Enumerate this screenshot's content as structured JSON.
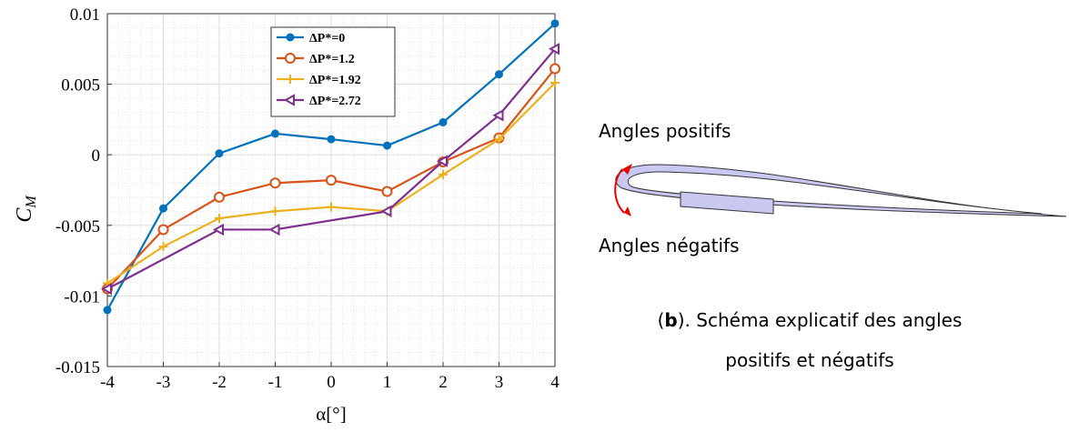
{
  "chart_data": {
    "type": "line",
    "xlabel": "α[°]",
    "ylabel": "C",
    "ylabel_sub": "M",
    "x": [
      -4,
      -3,
      -2,
      -1,
      0,
      1,
      2,
      3,
      4
    ],
    "xlim": [
      -4,
      4
    ],
    "xticks": [
      -4,
      -3,
      -2,
      -1,
      0,
      1,
      2,
      3,
      4
    ],
    "ylim": [
      -0.015,
      0.01
    ],
    "yticks": [
      -0.015,
      -0.01,
      -0.005,
      0,
      0.005,
      0.01
    ],
    "grid": true,
    "legend": "upper-left",
    "series": [
      {
        "name": "ΔP*=0",
        "color": "#0072BD",
        "marker": "filled-circle",
        "values": [
          -0.011,
          -0.0038,
          0.0001,
          0.0015,
          0.0011,
          0.00065,
          0.0023,
          0.0057,
          0.0093
        ]
      },
      {
        "name": "ΔP*=1.2",
        "color": "#D95319",
        "marker": "open-circle",
        "values": [
          -0.0095,
          -0.0053,
          -0.003,
          -0.002,
          -0.0018,
          -0.0026,
          -0.0005,
          0.0012,
          0.0061
        ]
      },
      {
        "name": "ΔP*=1.92",
        "color": "#EDB120",
        "marker": "plus",
        "values": [
          -0.0091,
          -0.0065,
          -0.0045,
          -0.004,
          -0.0037,
          -0.004,
          -0.0014,
          0.0011,
          0.0051
        ]
      },
      {
        "name": "ΔP*=2.72",
        "color": "#7E2F8E",
        "marker": "triangle-left",
        "x": [
          -4,
          -2,
          -1,
          1,
          2,
          3,
          4
        ],
        "values": [
          -0.0095,
          -0.0053,
          -0.0053,
          -0.004,
          -0.00045,
          0.0028,
          0.0075
        ]
      }
    ]
  },
  "diagram": {
    "label_top": "Angles positifs",
    "label_bottom": "Angles négatifs",
    "caption_open": "(",
    "caption_bold": "b",
    "caption_rest": "). Schéma explicatif des angles",
    "caption_line2": "positifs et négatifs"
  }
}
